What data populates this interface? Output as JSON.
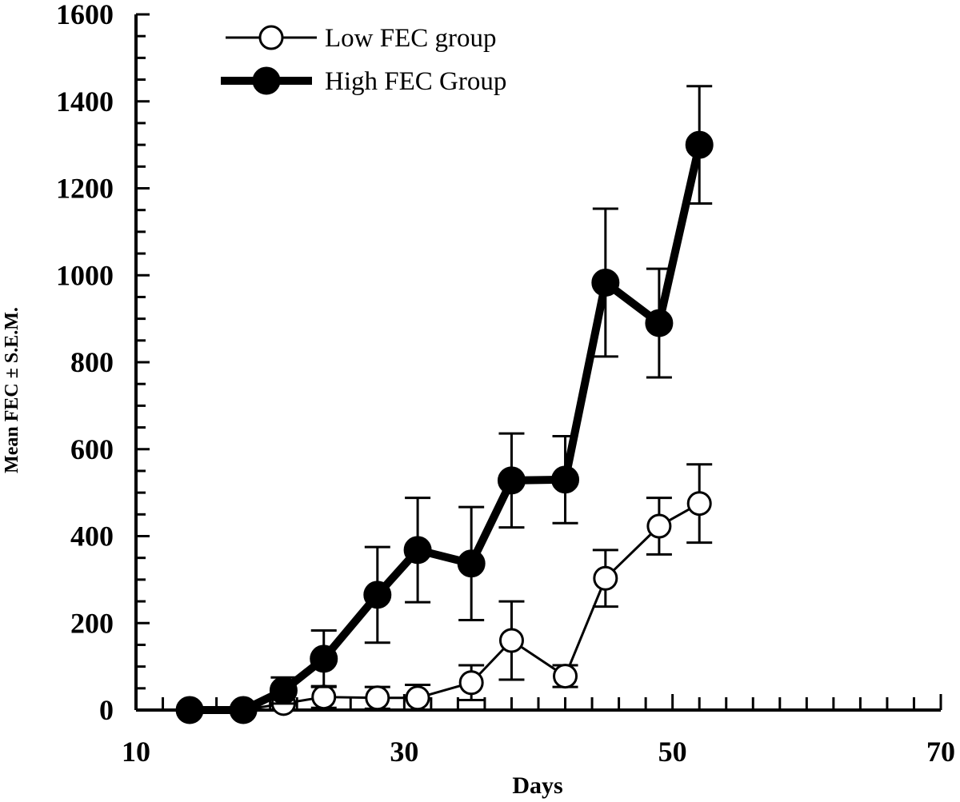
{
  "chart_data": {
    "type": "line",
    "xlabel": "Days",
    "ylabel": "Mean FEC ± S.E.M.",
    "xlim": [
      10,
      70
    ],
    "ylim": [
      0,
      1600
    ],
    "x_ticks": [
      10,
      30,
      50,
      70
    ],
    "y_ticks": [
      0,
      200,
      400,
      600,
      800,
      1000,
      1200,
      1400,
      1600
    ],
    "grid": false,
    "legend_position": "top-left",
    "series": [
      {
        "name": "Low FEC group",
        "marker": "open-circle",
        "line_style": "thin",
        "points": [
          {
            "x": 14,
            "y": 0,
            "err": 0
          },
          {
            "x": 18,
            "y": 0,
            "err": 0
          },
          {
            "x": 21,
            "y": 15,
            "err": 0
          },
          {
            "x": 24,
            "y": 30,
            "err": 25
          },
          {
            "x": 28,
            "y": 28,
            "err": 25
          },
          {
            "x": 31,
            "y": 28,
            "err": 30
          },
          {
            "x": 35,
            "y": 63,
            "err": 40
          },
          {
            "x": 38,
            "y": 160,
            "err": 90
          },
          {
            "x": 42,
            "y": 78,
            "err": 25
          },
          {
            "x": 45,
            "y": 303,
            "err": 65
          },
          {
            "x": 49,
            "y": 423,
            "err": 65
          },
          {
            "x": 52,
            "y": 475,
            "err": 90
          }
        ]
      },
      {
        "name": "High FEC Group",
        "marker": "filled-circle",
        "line_style": "thick",
        "points": [
          {
            "x": 14,
            "y": 0,
            "err": 0
          },
          {
            "x": 18,
            "y": 0,
            "err": 0
          },
          {
            "x": 21,
            "y": 45,
            "err": 30
          },
          {
            "x": 24,
            "y": 118,
            "err": 65
          },
          {
            "x": 28,
            "y": 265,
            "err": 110
          },
          {
            "x": 31,
            "y": 368,
            "err": 120
          },
          {
            "x": 35,
            "y": 337,
            "err": 130
          },
          {
            "x": 38,
            "y": 528,
            "err": 108
          },
          {
            "x": 42,
            "y": 530,
            "err": 100
          },
          {
            "x": 45,
            "y": 983,
            "err": 170
          },
          {
            "x": 49,
            "y": 890,
            "err": 125
          },
          {
            "x": 52,
            "y": 1300,
            "err": 135
          }
        ]
      }
    ]
  }
}
